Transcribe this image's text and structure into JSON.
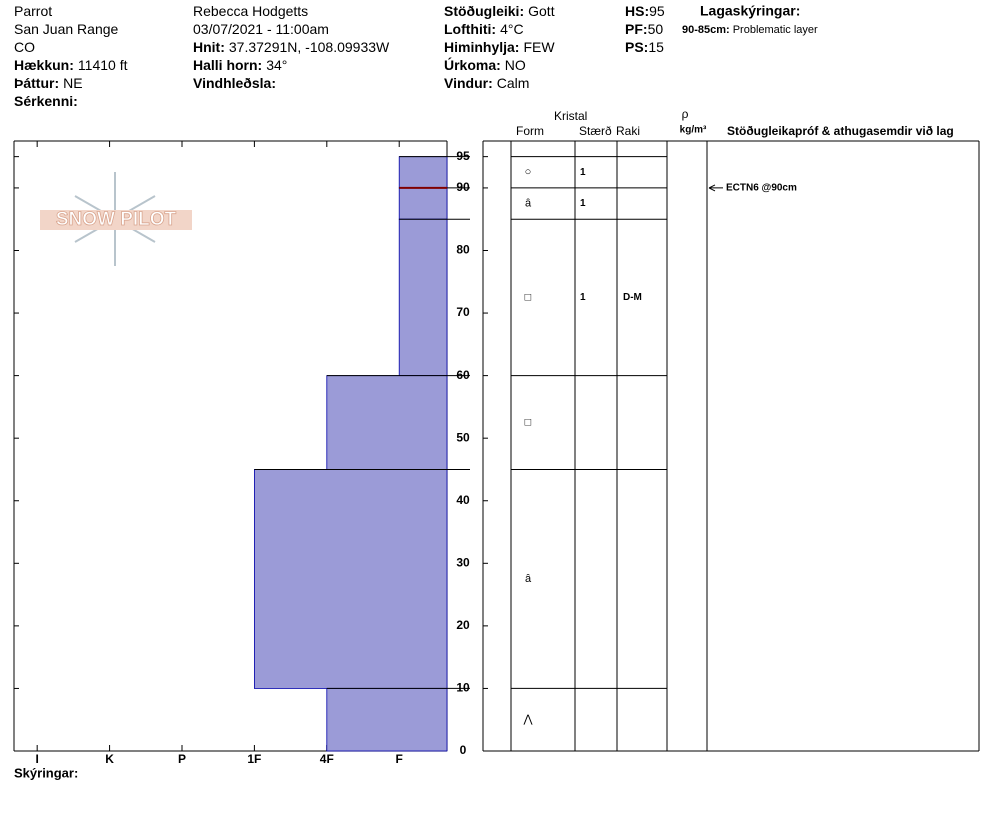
{
  "header": {
    "columns": [
      [
        {
          "text": "Parrot"
        },
        {
          "text": "San Juan Range"
        },
        {
          "text": "CO"
        },
        {
          "label": "Hækkun:",
          "value": "11410 ft"
        },
        {
          "label": "Þáttur:",
          "value": "NE"
        },
        {
          "label": "Sérkenni:"
        }
      ],
      [
        {
          "text": "Rebecca Hodgetts"
        },
        {
          "text": "03/07/2021 - 11:00am"
        },
        {
          "label": "Hnit:",
          "value": "37.37291N, -108.09933W"
        },
        {
          "label": "Halli horn:",
          "value": "34°"
        },
        {
          "label": "Vindhleðsla:"
        }
      ],
      [
        {
          "label": "Stöðugleiki:",
          "value": "Gott"
        },
        {
          "label": "Lofthiti:",
          "value": "4°C"
        },
        {
          "label": "Himinhylja:",
          "value": "FEW"
        },
        {
          "label": "Úrkoma:",
          "value": "NO"
        },
        {
          "label": "Vindur:",
          "value": "Calm"
        }
      ],
      [
        {
          "label": "HS:",
          "value": "95"
        },
        {
          "label": "PF:",
          "value": "50"
        },
        {
          "label": "PS:",
          "value": "15"
        }
      ]
    ],
    "layer_notes_title": "Lagaskýringar:",
    "layer_notes": [
      {
        "label": "90-85cm:",
        "value": "Problematic layer"
      }
    ]
  },
  "logo": "SNOW PILOT",
  "table_headers": {
    "crystal": "Kristal",
    "form": "Form",
    "size": "Stærð",
    "moisture": "Raki",
    "rho": "ρ",
    "density_unit": "kg/m³",
    "tests": "Stöðugleikapróf & athugasemdir við lag"
  },
  "chart_data": {
    "type": "profile",
    "ylim": [
      0,
      97.5
    ],
    "yticks": [
      0,
      10,
      20,
      30,
      40,
      50,
      60,
      70,
      80,
      90,
      95
    ],
    "xlim": [
      6.32,
      0.34
    ],
    "xticks": [
      {
        "value": 6,
        "label": "I"
      },
      {
        "value": 5,
        "label": "K"
      },
      {
        "value": 4,
        "label": "P"
      },
      {
        "value": 3,
        "label": "1F"
      },
      {
        "value": 2,
        "label": "4F"
      },
      {
        "value": 1,
        "label": "F"
      }
    ],
    "color": "#9b9bd7",
    "layers": [
      {
        "top": 95,
        "bottom": 90,
        "hardness": 1,
        "form": "○",
        "size": 1,
        "moisture": null
      },
      {
        "top": 90,
        "bottom": 85,
        "hardness": 1,
        "form": "ȃ",
        "size": 1,
        "moisture": null
      },
      {
        "top": 85,
        "bottom": 60,
        "hardness": 1,
        "form": "□",
        "size": 1,
        "moisture": "D-M"
      },
      {
        "top": 60,
        "bottom": 45,
        "hardness": 2,
        "form": "□",
        "size": null,
        "moisture": null
      },
      {
        "top": 45,
        "bottom": 10,
        "hardness": 3,
        "form": "ȃ",
        "size": null,
        "moisture": null
      },
      {
        "top": 10,
        "bottom": 0,
        "hardness": 2,
        "form": "⋀",
        "size": null,
        "moisture": null
      }
    ],
    "tests": [
      {
        "depth": 90,
        "label": "ECTN6 @90cm",
        "color": "#800000"
      }
    ],
    "legend_title": "Skýringar:"
  }
}
